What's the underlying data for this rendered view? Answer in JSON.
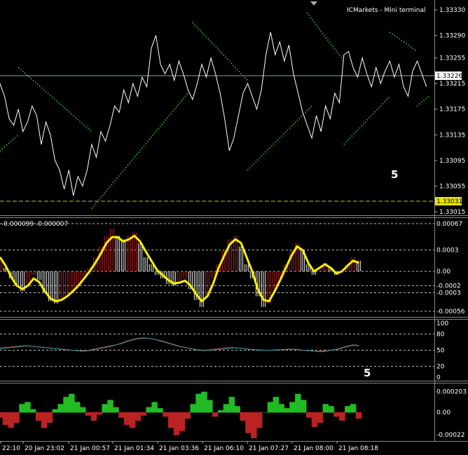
{
  "chart_data": [
    {
      "type": "line",
      "name": "price-panel",
      "title": "ICMarkets - Mini terminal",
      "ylim": [
        1.33015,
        1.3333
      ],
      "y_ticks": [
        "1.33330",
        "1.33290",
        "1.33255",
        "1.33215",
        "1.33175",
        "1.33135",
        "1.33095",
        "1.33055",
        "1.33015"
      ],
      "current_price": "1.33226",
      "level_price": "1.33031",
      "annotation": "5",
      "price_series": [
        {
          "t": 0,
          "y": 1.33215
        },
        {
          "t": 2,
          "y": 1.33195
        },
        {
          "t": 4,
          "y": 1.3316
        },
        {
          "t": 6,
          "y": 1.3315
        },
        {
          "t": 8,
          "y": 1.33175
        },
        {
          "t": 10,
          "y": 1.3314
        },
        {
          "t": 12,
          "y": 1.33155
        },
        {
          "t": 14,
          "y": 1.3318
        },
        {
          "t": 16,
          "y": 1.33165
        },
        {
          "t": 18,
          "y": 1.3312
        },
        {
          "t": 20,
          "y": 1.33155
        },
        {
          "t": 22,
          "y": 1.33135
        },
        {
          "t": 24,
          "y": 1.33095
        },
        {
          "t": 26,
          "y": 1.3308
        },
        {
          "t": 28,
          "y": 1.3305
        },
        {
          "t": 30,
          "y": 1.3308
        },
        {
          "t": 32,
          "y": 1.3304
        },
        {
          "t": 34,
          "y": 1.3307
        },
        {
          "t": 36,
          "y": 1.33055
        },
        {
          "t": 38,
          "y": 1.3308
        },
        {
          "t": 40,
          "y": 1.3312
        },
        {
          "t": 42,
          "y": 1.331
        },
        {
          "t": 44,
          "y": 1.3314
        },
        {
          "t": 46,
          "y": 1.33125
        },
        {
          "t": 48,
          "y": 1.3315
        },
        {
          "t": 50,
          "y": 1.3318
        },
        {
          "t": 52,
          "y": 1.3317
        },
        {
          "t": 54,
          "y": 1.33205
        },
        {
          "t": 56,
          "y": 1.33185
        },
        {
          "t": 58,
          "y": 1.33215
        },
        {
          "t": 60,
          "y": 1.33195
        },
        {
          "t": 62,
          "y": 1.33225
        },
        {
          "t": 64,
          "y": 1.3321
        },
        {
          "t": 66,
          "y": 1.3327
        },
        {
          "t": 68,
          "y": 1.3329
        },
        {
          "t": 70,
          "y": 1.33245
        },
        {
          "t": 72,
          "y": 1.3323
        },
        {
          "t": 74,
          "y": 1.33245
        },
        {
          "t": 76,
          "y": 1.3322
        },
        {
          "t": 78,
          "y": 1.3325
        },
        {
          "t": 80,
          "y": 1.3323
        },
        {
          "t": 82,
          "y": 1.33205
        },
        {
          "t": 84,
          "y": 1.3319
        },
        {
          "t": 86,
          "y": 1.33215
        },
        {
          "t": 88,
          "y": 1.33245
        },
        {
          "t": 90,
          "y": 1.33225
        },
        {
          "t": 92,
          "y": 1.33255
        },
        {
          "t": 94,
          "y": 1.3323
        },
        {
          "t": 96,
          "y": 1.332
        },
        {
          "t": 98,
          "y": 1.3316
        },
        {
          "t": 100,
          "y": 1.3311
        },
        {
          "t": 102,
          "y": 1.3313
        },
        {
          "t": 104,
          "y": 1.33165
        },
        {
          "t": 106,
          "y": 1.332
        },
        {
          "t": 108,
          "y": 1.33215
        },
        {
          "t": 110,
          "y": 1.33195
        },
        {
          "t": 112,
          "y": 1.33175
        },
        {
          "t": 114,
          "y": 1.33205
        },
        {
          "t": 116,
          "y": 1.3326
        },
        {
          "t": 118,
          "y": 1.33295
        },
        {
          "t": 120,
          "y": 1.3326
        },
        {
          "t": 122,
          "y": 1.3328
        },
        {
          "t": 124,
          "y": 1.3325
        },
        {
          "t": 126,
          "y": 1.33275
        },
        {
          "t": 128,
          "y": 1.3323
        },
        {
          "t": 130,
          "y": 1.332
        },
        {
          "t": 132,
          "y": 1.3317
        },
        {
          "t": 134,
          "y": 1.3315
        },
        {
          "t": 136,
          "y": 1.3313
        },
        {
          "t": 138,
          "y": 1.33165
        },
        {
          "t": 140,
          "y": 1.3314
        },
        {
          "t": 142,
          "y": 1.3318
        },
        {
          "t": 144,
          "y": 1.3316
        },
        {
          "t": 146,
          "y": 1.332
        },
        {
          "t": 148,
          "y": 1.33185
        },
        {
          "t": 150,
          "y": 1.3326
        },
        {
          "t": 152,
          "y": 1.33265
        },
        {
          "t": 154,
          "y": 1.3324
        },
        {
          "t": 156,
          "y": 1.33225
        },
        {
          "t": 158,
          "y": 1.33255
        },
        {
          "t": 160,
          "y": 1.3323
        },
        {
          "t": 162,
          "y": 1.3321
        },
        {
          "t": 164,
          "y": 1.3324
        },
        {
          "t": 166,
          "y": 1.33215
        },
        {
          "t": 168,
          "y": 1.33235
        },
        {
          "t": 170,
          "y": 1.3325
        },
        {
          "t": 172,
          "y": 1.33225
        },
        {
          "t": 174,
          "y": 1.33245
        },
        {
          "t": 176,
          "y": 1.3321
        },
        {
          "t": 178,
          "y": 1.33195
        },
        {
          "t": 180,
          "y": 1.33235
        },
        {
          "t": 182,
          "y": 1.3325
        },
        {
          "t": 184,
          "y": 1.3323
        },
        {
          "t": 186,
          "y": 1.3321
        }
      ],
      "dotted_trends": [
        {
          "points": [
            {
              "t": 0,
              "y": 1.3311
            },
            {
              "t": 8,
              "y": 1.33135
            }
          ]
        },
        {
          "points": [
            {
              "t": 8,
              "y": 1.3324
            },
            {
              "t": 40,
              "y": 1.3314
            }
          ]
        },
        {
          "points": [
            {
              "t": 40,
              "y": 1.3302
            },
            {
              "t": 82,
              "y": 1.332
            }
          ]
        },
        {
          "points": [
            {
              "t": 84,
              "y": 1.3331
            },
            {
              "t": 108,
              "y": 1.3322
            }
          ]
        },
        {
          "points": [
            {
              "t": 108,
              "y": 1.3308
            },
            {
              "t": 136,
              "y": 1.3318
            }
          ]
        },
        {
          "points": [
            {
              "t": 134,
              "y": 1.33325
            },
            {
              "t": 150,
              "y": 1.3325
            }
          ]
        },
        {
          "points": [
            {
              "t": 150,
              "y": 1.3312
            },
            {
              "t": 170,
              "y": 1.33195
            }
          ]
        },
        {
          "points": [
            {
              "t": 170,
              "y": 1.33295
            },
            {
              "t": 182,
              "y": 1.33265
            }
          ]
        },
        {
          "points": [
            {
              "t": 182,
              "y": 1.3318
            },
            {
              "t": 187,
              "y": 1.33195
            }
          ]
        }
      ]
    },
    {
      "type": "bar",
      "name": "macd-panel",
      "label": "-0.000099 -0.000007",
      "ylim": [
        -0.0006,
        0.0007
      ],
      "y_ticks": [
        "0.00067",
        "0.0003",
        "0.00",
        "-0.0002",
        "-0.0003",
        "-0.00056"
      ],
      "histogram": [
        0.00015,
        5e-05,
        -0.0001,
        -0.0002,
        -0.00028,
        -0.00018,
        -5e-05,
        -0.00012,
        -0.0003,
        -0.00042,
        -0.00045,
        -0.0004,
        -0.00035,
        -0.00028,
        -0.00018,
        -8e-05,
        5e-05,
        0.0002,
        0.00035,
        0.0005,
        0.0006,
        0.0005,
        0.00045,
        0.0005,
        0.00055,
        0.0004,
        0.0002,
        0.0001,
        -5e-05,
        -0.0001,
        -0.00018,
        -0.0002,
        -0.00015,
        -0.0001,
        -0.00025,
        -0.0004,
        -0.0005,
        -0.00035,
        -0.0001,
        0.0001,
        0.0003,
        0.00045,
        0.0005,
        0.00035,
        0.0001,
        -0.0001,
        -0.00035,
        -0.0005,
        -0.00045,
        -0.00025,
        -0.0001,
        0.0001,
        0.0003,
        0.0004,
        0.0003,
        0.0001,
        -5e-05,
        5e-05,
        0.00012,
        5e-05,
        -5e-05,
        0.0,
        0.0001,
        0.0002,
        0.00015
      ],
      "signal": [
        0.0002,
        8e-05,
        -8e-05,
        -0.0002,
        -0.00025,
        -0.0002,
        -0.0001,
        -0.00015,
        -0.00028,
        -0.00038,
        -0.00042,
        -0.0004,
        -0.00035,
        -0.00028,
        -0.0002,
        -0.0001,
        0.0,
        0.00012,
        0.00025,
        0.0004,
        0.00048,
        0.00048,
        0.00042,
        0.00045,
        0.0005,
        0.00042,
        0.00028,
        0.00015,
        2e-05,
        -5e-05,
        -0.00012,
        -0.00017,
        -0.00016,
        -0.00013,
        -0.0002,
        -0.00032,
        -0.00042,
        -0.00035,
        -0.00018,
        5e-05,
        0.00022,
        0.00038,
        0.00045,
        0.0004,
        0.0002,
        0.0,
        -0.00025,
        -0.0004,
        -0.00042,
        -0.00028,
        -0.00012,
        5e-05,
        0.00022,
        0.00035,
        0.0003,
        0.00012,
        0.0,
        5e-05,
        0.0001,
        5e-05,
        -3e-05,
        0.0,
        8e-05,
        0.00015,
        0.00012
      ]
    },
    {
      "type": "line",
      "name": "rsi-panel",
      "ylim": [
        0,
        100
      ],
      "y_ticks": [
        "100",
        "80",
        "50",
        "20",
        "0"
      ],
      "annotation": "5",
      "series": [
        {
          "name": "",
          "values": [
            54,
            55,
            56,
            57,
            58,
            58,
            57,
            56,
            55,
            54,
            53,
            52,
            51,
            50,
            49,
            49,
            50,
            52,
            54,
            56,
            58,
            60,
            63,
            67,
            70,
            72,
            73,
            72,
            70,
            67,
            64,
            61,
            58,
            56,
            54,
            52,
            51,
            50,
            51,
            52,
            53,
            54,
            55,
            54,
            53,
            52,
            51,
            51,
            50,
            50,
            51,
            51,
            52,
            52,
            51,
            50,
            49,
            48,
            48,
            49,
            50,
            52,
            55,
            58,
            60,
            59
          ]
        },
        {
          "name": "",
          "values": [
            53,
            54,
            55,
            56,
            57,
            58,
            57,
            56,
            55,
            54,
            53,
            52,
            51,
            50,
            49,
            48,
            49,
            51,
            53,
            55,
            57,
            60,
            62,
            66,
            69,
            71,
            72,
            72,
            70,
            68,
            65,
            62,
            59,
            56,
            54,
            52,
            50,
            49,
            50,
            51,
            52,
            53,
            54,
            54,
            53,
            52,
            51,
            50,
            50,
            50,
            50,
            51,
            51,
            52,
            51,
            50,
            49,
            48,
            47,
            48,
            50,
            51,
            54,
            57,
            59,
            58
          ]
        }
      ]
    },
    {
      "type": "area",
      "name": "oscillator-panel",
      "ylim": [
        -0.00026,
        0.00026
      ],
      "y_ticks": [
        "0.000203",
        "0.00",
        "-0.00022"
      ],
      "x_ticks": [
        "22:10",
        "20 Jan 23:02",
        "21 Jan 00:57",
        "21 Jan 01:34",
        "21 Jan 03:36",
        "21 Jan 06:10",
        "21 Jan 07:27",
        "21 Jan 08:00",
        "21 Jan 08:18"
      ],
      "values": [
        -5e-05,
        -0.00012,
        -0.00015,
        -0.0001,
        8e-05,
        0.0001,
        3e-05,
        -8e-05,
        -0.00015,
        -0.0001,
        3e-05,
        8e-05,
        0.00015,
        0.00018,
        0.0001,
        5e-05,
        -3e-05,
        -8e-05,
        -2e-05,
        8e-05,
        0.00012,
        5e-05,
        -5e-05,
        -0.00012,
        -0.00015,
        -8e-05,
        -3e-05,
        5e-05,
        0.0001,
        4e-05,
        -4e-05,
        -0.00015,
        -0.00022,
        -0.00018,
        -6e-05,
        8e-05,
        0.00018,
        0.0002,
        0.00012,
        -4e-05,
        2e-05,
        8e-05,
        0.00015,
        6e-05,
        -8e-05,
        -0.0002,
        -0.00025,
        -0.00015,
        0.0,
        0.0001,
        0.00015,
        8e-05,
        4e-05,
        0.0001,
        0.00018,
        0.00012,
        -5e-05,
        -0.00014,
        -0.0001,
        8e-05,
        6e-05,
        -4e-05,
        -8e-05,
        6e-05,
        8e-05,
        -6e-05
      ]
    }
  ]
}
